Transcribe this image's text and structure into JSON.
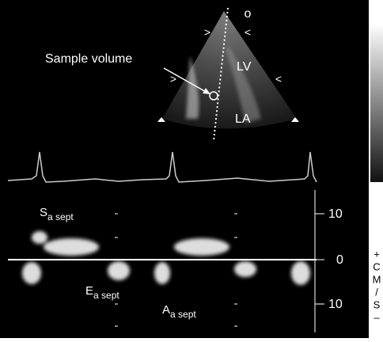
{
  "echo_view": {
    "orientation_marker": "o",
    "wall_markers": [
      ">",
      "<",
      ">",
      "<"
    ],
    "chambers": [
      "LV",
      "LA"
    ],
    "annotation": "Sample volume"
  },
  "doppler": {
    "waves": [
      {
        "main": "S",
        "sub": "a sept"
      },
      {
        "main": "E",
        "sub": "a sept"
      },
      {
        "main": "A",
        "sub": "a sept"
      }
    ],
    "scale_labels": [
      "10",
      "0",
      "10"
    ],
    "unit_label": [
      "+",
      "C",
      "M",
      "/",
      "S",
      "–"
    ]
  }
}
